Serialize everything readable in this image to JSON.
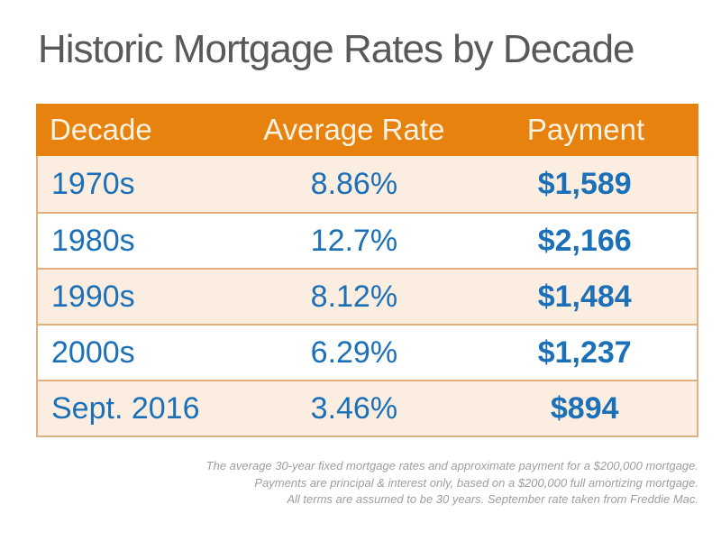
{
  "page": {
    "title": "Historic Mortgage Rates by Decade"
  },
  "table": {
    "headers": [
      "Decade",
      "Average Rate",
      "Payment"
    ],
    "rows": [
      {
        "decade": "1970s",
        "rate": "8.86%",
        "payment": "$1,589"
      },
      {
        "decade": "1980s",
        "rate": "12.7%",
        "payment": "$2,166"
      },
      {
        "decade": "1990s",
        "rate": "8.12%",
        "payment": "$1,484"
      },
      {
        "decade": "2000s",
        "rate": "6.29%",
        "payment": "$1,237"
      },
      {
        "decade": "Sept. 2016",
        "rate": "3.46%",
        "payment": "$894"
      }
    ]
  },
  "footer": {
    "lines": [
      "The average 30-year fixed mortgage rates and approximate payment for a $200,000 mortgage.",
      "Payments are principal & interest only, based on a $200,000 full amortizing mortgage.",
      "All terms are assumed to be 30 years. September rate taken from Freddie Mac."
    ]
  },
  "colors": {
    "header_bg": "#e8820f",
    "header_text": "#fcf3e3",
    "row_alt_bg": "#fbeee1",
    "row_plain_bg": "#ffffff",
    "value_blue": "#1b70b7",
    "separator_tan": "#dfaf7e",
    "border_tan": "#ddb183",
    "title_gray": "#595959",
    "footnote_gray": "#9e9e9e"
  },
  "chart_data": {
    "type": "table",
    "title": "Historic Mortgage Rates by Decade",
    "columns": [
      "Decade",
      "Average Rate",
      "Payment"
    ],
    "rows": [
      [
        "1970s",
        "8.86%",
        "$1,589"
      ],
      [
        "1980s",
        "12.7%",
        "$2,166"
      ],
      [
        "1990s",
        "8.12%",
        "$1,484"
      ],
      [
        "2000s",
        "6.29%",
        "$1,237"
      ],
      [
        "Sept. 2016",
        "3.46%",
        "$894"
      ]
    ],
    "numeric": {
      "average_rate_percent": [
        8.86,
        12.7,
        8.12,
        6.29,
        3.46
      ],
      "payment_usd": [
        1589,
        2166,
        1484,
        1237,
        894
      ]
    },
    "notes": [
      "The average 30-year fixed mortgage rates and approximate payment for a $200,000 mortgage.",
      "Payments are principal & interest only, based on a $200,000 full amortizing mortgage.",
      "All terms are assumed to be 30 years. September rate taken from Freddie Mac."
    ]
  }
}
